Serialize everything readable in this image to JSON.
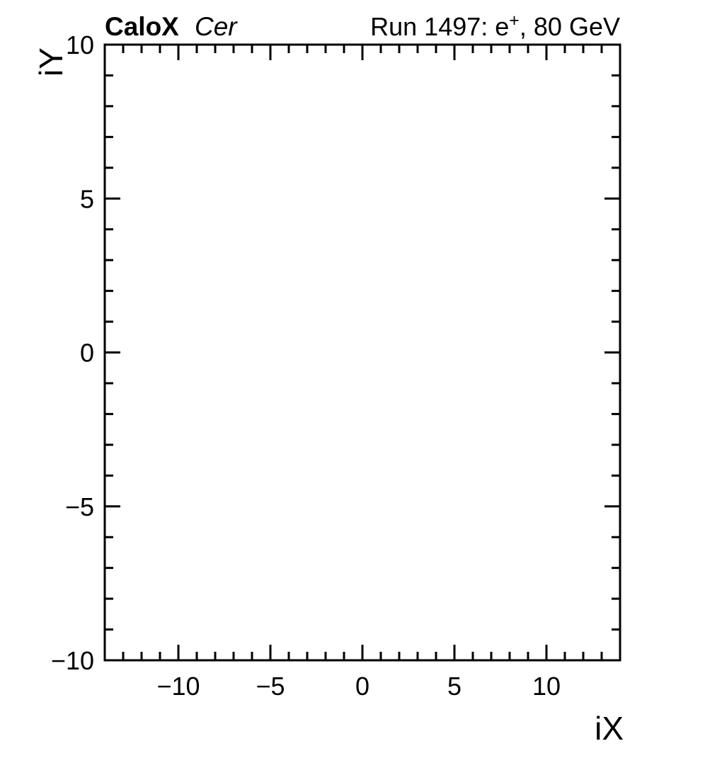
{
  "header": {
    "experiment_label": "CaloX",
    "detector_label": "Cer",
    "run_prefix": "Run 1497: e",
    "run_sup": "+",
    "run_suffix": ", 80 GeV"
  },
  "chart_data": {
    "type": "heatmap",
    "title": "Run 1497: e+, 80 GeV",
    "corner_label_left": "CaloX Cer",
    "xlabel": "iX",
    "ylabel": "iY",
    "xlim": [
      -14,
      14
    ],
    "ylim": [
      -10,
      10
    ],
    "x_minor_step": 1,
    "y_minor_step": 1,
    "x_major_ticks": [
      -10,
      -5,
      0,
      5,
      10
    ],
    "y_major_ticks": [
      -10,
      -5,
      0,
      5,
      10
    ],
    "x_tick_labels": [
      "-10",
      "-5",
      "0",
      "5",
      "10"
    ],
    "y_tick_labels": [
      "-10",
      "-5",
      "0",
      "5",
      "10"
    ],
    "grid": false,
    "legend": "none",
    "values": [],
    "colors": {
      "axis": "#000000",
      "text": "#000000",
      "background": "#ffffff"
    }
  }
}
